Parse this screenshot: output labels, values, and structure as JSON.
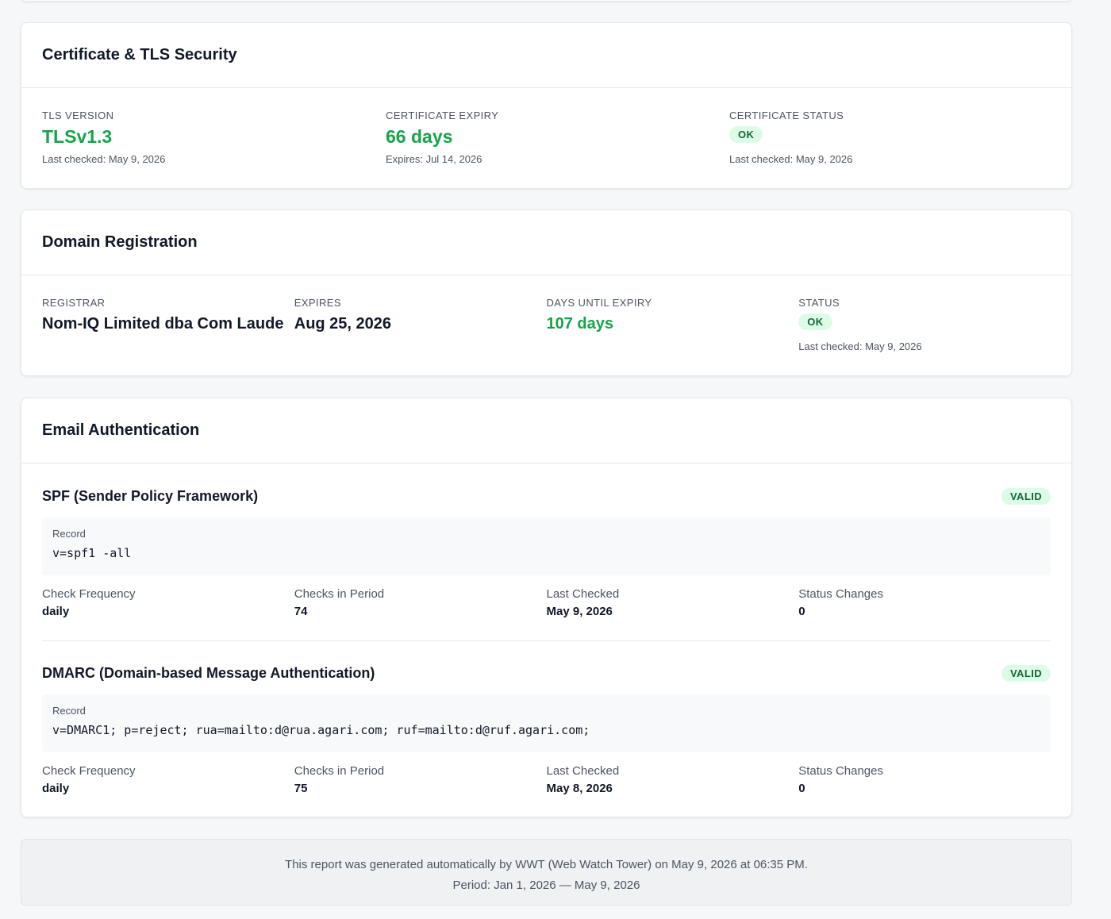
{
  "tls": {
    "title": "Certificate & TLS Security",
    "items": [
      {
        "label": "TLS VERSION",
        "value": "TLSv1.3",
        "note": "Last checked: May 9, 2026"
      },
      {
        "label": "CERTIFICATE EXPIRY",
        "value": "66 days",
        "note": "Expires: Jul 14, 2026"
      },
      {
        "label": "CERTIFICATE STATUS",
        "badge": "OK",
        "note": "Last checked: May 9, 2026"
      }
    ]
  },
  "domain": {
    "title": "Domain Registration",
    "items": [
      {
        "label": "REGISTRAR",
        "value": "Nom-IQ Limited dba Com Laude"
      },
      {
        "label": "EXPIRES",
        "value": "Aug 25, 2026"
      },
      {
        "label": "DAYS UNTIL EXPIRY",
        "value": "107 days"
      },
      {
        "label": "STATUS",
        "badge": "OK",
        "note": "Last checked: May 9, 2026"
      }
    ]
  },
  "email": {
    "title": "Email Authentication",
    "records": [
      {
        "name": "SPF (Sender Policy Framework)",
        "badge": "VALID",
        "record_label": "Record",
        "record": "v=spf1 -all",
        "stats": [
          {
            "label": "Check Frequency",
            "value": "daily"
          },
          {
            "label": "Checks in Period",
            "value": 74
          },
          {
            "label": "Last Checked",
            "value": "May 9, 2026"
          },
          {
            "label": "Status Changes",
            "value": 0
          }
        ]
      },
      {
        "name": "DMARC (Domain-based Message Authentication)",
        "badge": "VALID",
        "record_label": "Record",
        "record": "v=DMARC1; p=reject; rua=mailto:d@rua.agari.com; ruf=mailto:d@ruf.agari.com;",
        "stats": [
          {
            "label": "Check Frequency",
            "value": "daily"
          },
          {
            "label": "Checks in Period",
            "value": 75
          },
          {
            "label": "Last Checked",
            "value": "May 8, 2026"
          },
          {
            "label": "Status Changes",
            "value": 0
          }
        ]
      }
    ]
  },
  "footer": {
    "lines": [
      "This report was generated automatically by WWT (Web Watch Tower) on May 9, 2026 at 06:35 PM.",
      "Period: Jan 1, 2026 — May 9, 2026"
    ]
  }
}
